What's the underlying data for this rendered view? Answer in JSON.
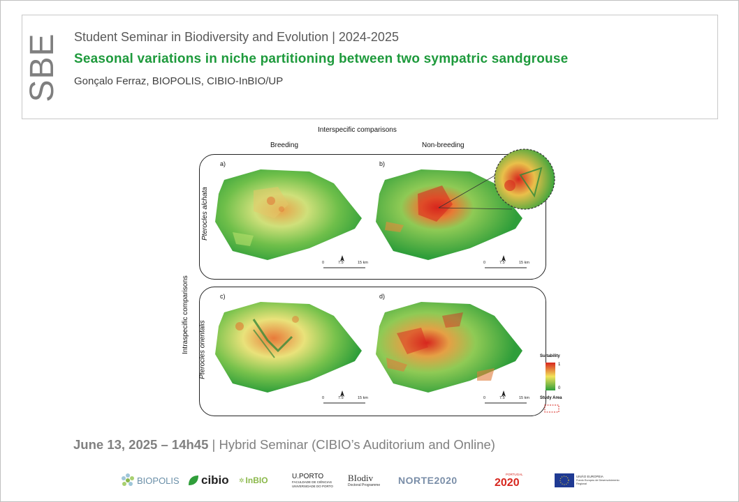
{
  "header": {
    "logo_text": "SBE",
    "series": "Student Seminar in Biodiversity and Evolution | 2024-2025",
    "title": "Seasonal variations in niche partitioning between two sympatric sandgrouse",
    "speaker": "Gonçalo Ferraz, BIOPOLIS, CIBIO-InBIO/UP"
  },
  "figure": {
    "top_title": "Interspecific comparisons",
    "col_breeding": "Breeding",
    "col_nonbreeding": "Non-breeding",
    "row_axis_title": "Intraspecific comparisons",
    "row_species_1": "Pterocles alchata",
    "row_species_2": "Pterocles orientalis",
    "panel_a": "a)",
    "panel_b": "b)",
    "panel_c": "c)",
    "panel_d": "d)",
    "scale_0": "0",
    "scale_mid": "7.5",
    "scale_max": "15 km",
    "legend_title": "Suitability",
    "legend_max": "1",
    "legend_min": "0",
    "legend_study_area": "Study Area",
    "colors": {
      "low": "#2f9e3a",
      "mid": "#f2e35a",
      "high": "#d7261e"
    }
  },
  "footer": {
    "date": "June 13, 2025 – 14h45",
    "separator": "|",
    "event": "Hybrid Seminar (CIBIO’s Auditorium  and Online)"
  },
  "logos": {
    "biopolis": "BIOPOLIS",
    "cibio": "cibio",
    "inbio": "InBIO",
    "uporto_top": "U.PORTO",
    "uporto_sub": "FACULDADE DE CIÊNCIAS",
    "uporto_sub2": "UNIVERSIDADE DO PORTO",
    "biodiv": "BIodiv",
    "biodiv_sub": "Doctoral Programme",
    "norte": "NORTE2020",
    "portugal": "PORTUGAL",
    "p2020": "2020",
    "eu_title": "UNIÃO EUROPEIA",
    "eu_sub": "Fundo Europeu de Desenvolvimento Regional"
  }
}
